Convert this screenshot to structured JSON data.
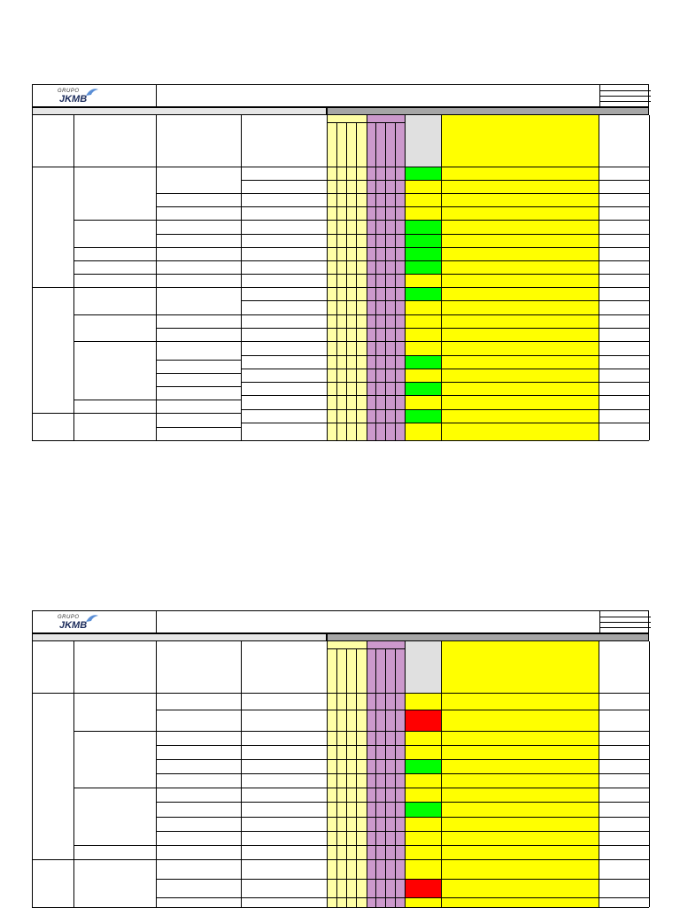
{
  "logo": {
    "grupo": "GRUPO",
    "name": "JKMB"
  },
  "colors": {
    "light_yellow": "#ffffa6",
    "purple": "#cc99cc",
    "grey": "#e0e0e0",
    "yellow": "#ffff00",
    "green": "#00ff00",
    "red": "#ff0000",
    "band_grey": "#a6a6a6"
  },
  "sheets": [
    {
      "name": "sheet-1",
      "status": [
        "green",
        "yellow",
        "yellow",
        "yellow",
        "green",
        "green",
        "green",
        "green",
        "yellow",
        "green",
        "yellow",
        "yellow",
        "yellow",
        "yellow",
        "green",
        "yellow",
        "green",
        "yellow",
        "green",
        "yellow"
      ]
    },
    {
      "name": "sheet-2",
      "status": [
        "yellow",
        "red",
        "yellow",
        "yellow",
        "green",
        "yellow",
        "yellow",
        "green",
        "yellow",
        "yellow",
        "yellow",
        "yellow",
        "red",
        "yellow"
      ]
    }
  ]
}
